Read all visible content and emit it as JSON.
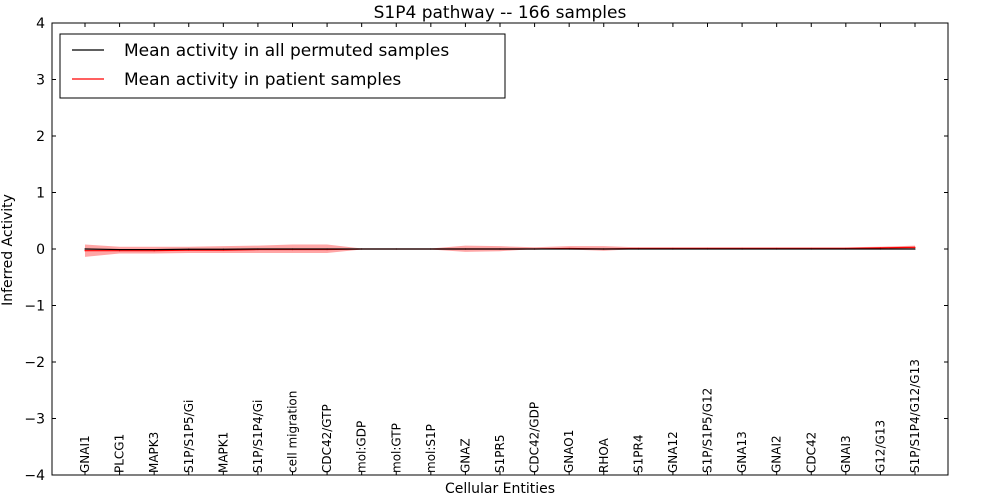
{
  "chart_data": {
    "type": "line",
    "title": "S1P4 pathway -- 166 samples",
    "xlabel": "Cellular Entities",
    "ylabel": "Inferred Activity",
    "ylim": [
      -4,
      4
    ],
    "yticks": [
      -4,
      -3,
      -2,
      -1,
      0,
      1,
      2,
      3,
      4
    ],
    "ytick_labels": [
      "−4",
      "−3",
      "−2",
      "−1",
      "0",
      "1",
      "2",
      "3",
      "4"
    ],
    "grid": false,
    "legend_position": "top-left",
    "categories": [
      "GNAI1",
      "PLCG1",
      "MAPK3",
      "S1P/S1P5/Gi",
      "MAPK1",
      "S1P/S1P4/Gi",
      "cell migration",
      "CDC42/GTP",
      "mol:GDP",
      "mol:GTP",
      "mol:S1P",
      "GNAZ",
      "S1PR5",
      "CDC42/GDP",
      "GNAO1",
      "RHOA",
      "S1PR4",
      "GNA12",
      "S1P/S1P5/G12",
      "GNA13",
      "GNAI2",
      "CDC42",
      "GNAI3",
      "G12/G13",
      "S1P/S1P4/G12/G13"
    ],
    "series": [
      {
        "name": "Mean activity in all permuted samples",
        "color": "#000000",
        "values": [
          0.0,
          -0.01,
          -0.01,
          -0.005,
          -0.005,
          0.0,
          0.0,
          0.0,
          0.0,
          0.0,
          0.0,
          0.0,
          0.0,
          0.0,
          0.0,
          0.0,
          0.0,
          0.0,
          0.0,
          0.0,
          0.0,
          0.0,
          0.0,
          0.0,
          0.0
        ]
      },
      {
        "name": "Mean activity in patient samples",
        "color": "#ff0000",
        "values": [
          -0.03,
          -0.03,
          -0.03,
          -0.02,
          -0.02,
          -0.01,
          -0.01,
          -0.01,
          0.0,
          0.0,
          0.0,
          0.0,
          0.0,
          0.0,
          0.01,
          0.0,
          0.01,
          0.01,
          0.01,
          0.01,
          0.01,
          0.01,
          0.01,
          0.02,
          0.03
        ],
        "band_lower": [
          -0.14,
          -0.08,
          -0.08,
          -0.07,
          -0.07,
          -0.07,
          -0.07,
          -0.07,
          -0.01,
          -0.01,
          -0.01,
          -0.05,
          -0.04,
          0.0,
          -0.01,
          -0.03,
          0.0,
          0.0,
          0.0,
          0.0,
          0.0,
          0.0,
          0.0,
          0.0,
          0.0
        ],
        "band_upper": [
          0.08,
          0.04,
          0.04,
          0.04,
          0.05,
          0.06,
          0.08,
          0.08,
          0.01,
          0.01,
          0.01,
          0.06,
          0.05,
          0.03,
          0.05,
          0.05,
          0.03,
          0.03,
          0.03,
          0.03,
          0.03,
          0.03,
          0.03,
          0.04,
          0.06
        ],
        "band_color": "#ff0000",
        "band_opacity": 0.35
      }
    ]
  }
}
